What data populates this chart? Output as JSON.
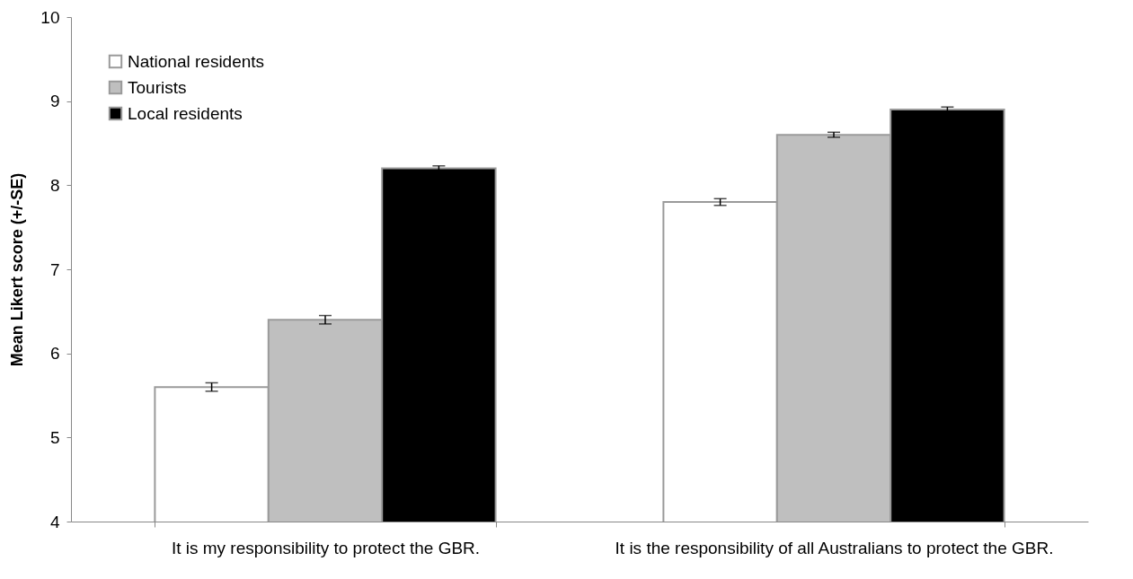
{
  "chart_data": {
    "type": "bar",
    "ylabel": "Mean Likert score (+/-SE)",
    "categories": [
      "It is my responsibility to protect the GBR.",
      "It is the responsibility of all Australians to protect the GBR."
    ],
    "series": [
      {
        "name": "National residents",
        "color": "#ffffff",
        "values": [
          5.6,
          7.8
        ],
        "errors": [
          0.05,
          0.04
        ]
      },
      {
        "name": "Tourists",
        "color": "#bfbfbf",
        "values": [
          6.4,
          8.6
        ],
        "errors": [
          0.05,
          0.03
        ]
      },
      {
        "name": "Local residents",
        "color": "#000000",
        "values": [
          8.2,
          8.9
        ],
        "errors": [
          0.03,
          0.03
        ]
      }
    ],
    "ylim": [
      4,
      10
    ],
    "yticks": [
      4,
      5,
      6,
      7,
      8,
      9,
      10
    ],
    "grid": false,
    "legend": "top left"
  }
}
